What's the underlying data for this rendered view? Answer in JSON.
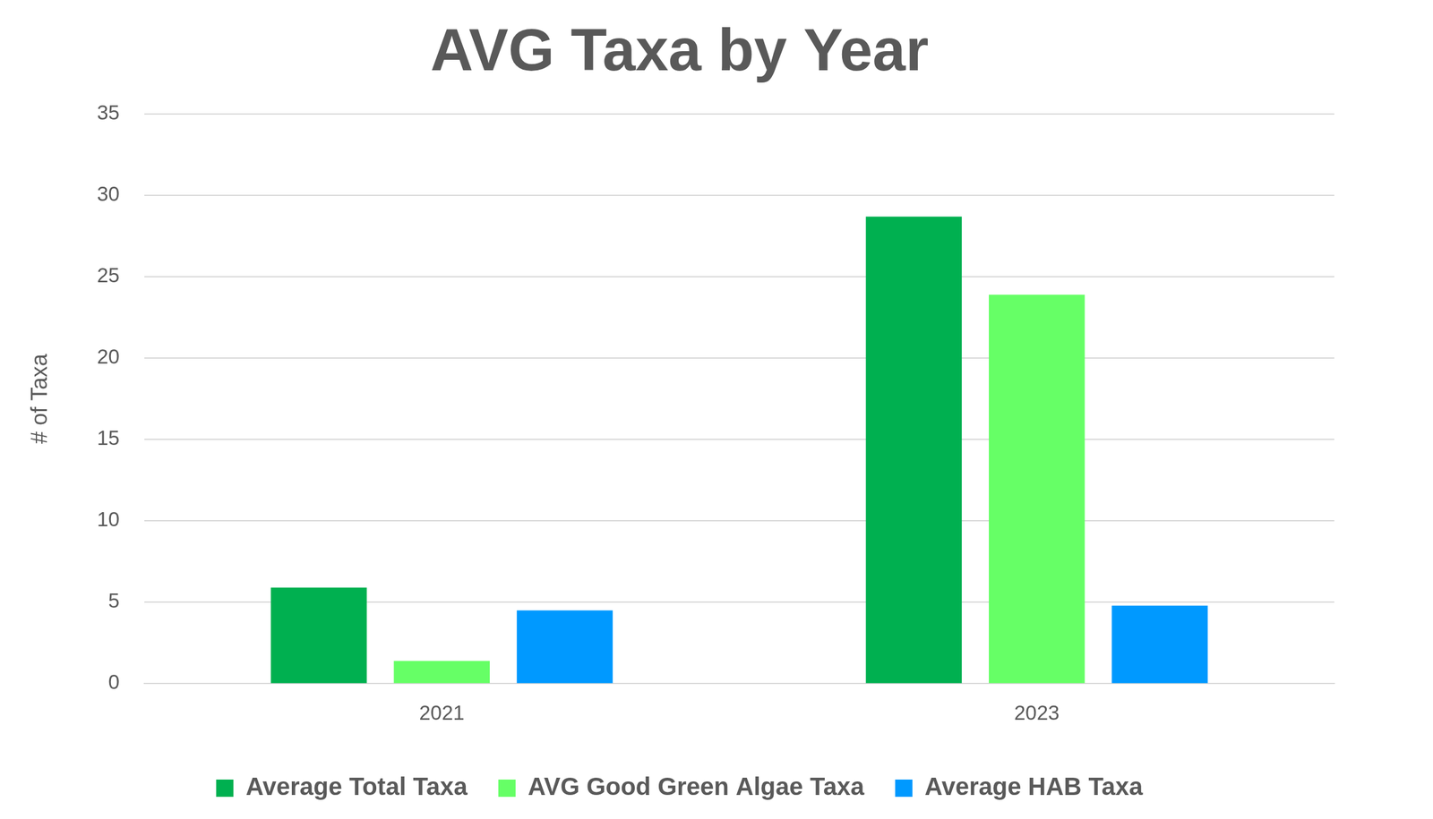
{
  "chart_data": {
    "type": "bar",
    "title": "AVG Taxa by Year",
    "y_label": "# of Taxa",
    "categories": [
      "2021",
      "2023"
    ],
    "series": [
      {
        "name": "Average Total Taxa",
        "color": "#00b050",
        "values": [
          5.9,
          28.7
        ]
      },
      {
        "name": "AVG Good Green Algae Taxa",
        "color": "#66ff66",
        "values": [
          1.4,
          23.9
        ]
      },
      {
        "name": "Average HAB Taxa",
        "color": "#0099ff",
        "values": [
          4.5,
          4.8
        ]
      }
    ],
    "ylim": [
      0,
      35
    ],
    "yticks": [
      0,
      5,
      10,
      15,
      20,
      25,
      30,
      35
    ],
    "grid": true,
    "legend": "bottom"
  }
}
